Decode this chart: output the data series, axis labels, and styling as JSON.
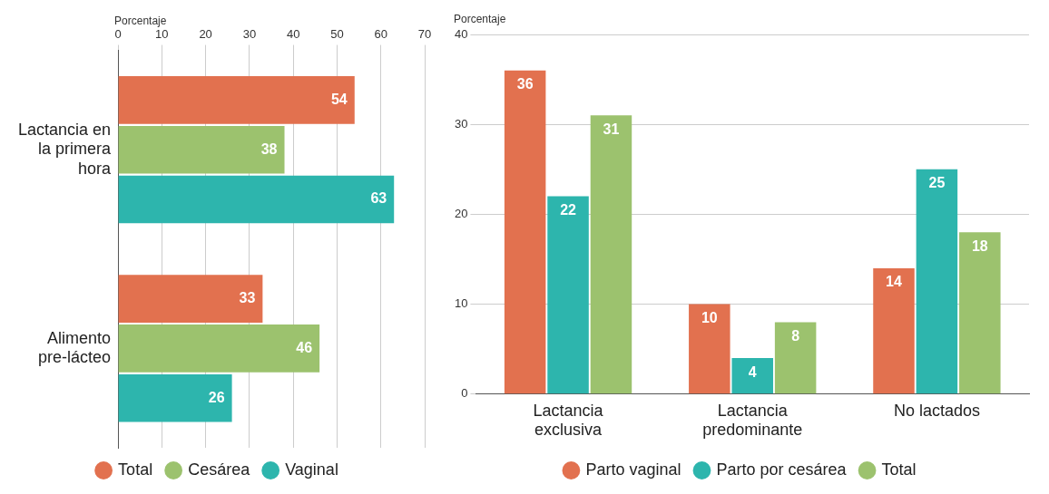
{
  "chart_data": [
    {
      "type": "bar",
      "orientation": "horizontal",
      "xlabel": "Porcentaje",
      "categories": [
        "Lactancia en la primera hora",
        "Alimento pre-lácteo"
      ],
      "series": [
        {
          "name": "Total",
          "color": "#e2714f",
          "values": [
            54,
            33
          ]
        },
        {
          "name": "Cesárea",
          "color": "#9cc26e",
          "values": [
            38,
            46
          ]
        },
        {
          "name": "Vaginal",
          "color": "#2db5ad",
          "values": [
            63,
            26
          ]
        }
      ],
      "xlim": [
        0,
        70
      ],
      "xticks": [
        0,
        10,
        20,
        30,
        40,
        50,
        60,
        70
      ],
      "grid": "x",
      "legend": "bottom",
      "data_labels": true
    },
    {
      "type": "bar",
      "ylabel": "Porcentaje",
      "categories": [
        "Lactancia exclusiva",
        "Lactancia predominante",
        "No lactados"
      ],
      "series": [
        {
          "name": "Parto vaginal",
          "color": "#e2714f",
          "values": [
            36,
            10,
            14
          ]
        },
        {
          "name": "Parto por cesárea",
          "color": "#2db5ad",
          "values": [
            22,
            4,
            25
          ]
        },
        {
          "name": "Total",
          "color": "#9cc26e",
          "values": [
            31,
            8,
            18
          ]
        }
      ],
      "ylim": [
        0,
        40
      ],
      "yticks": [
        0,
        10,
        20,
        30,
        40
      ],
      "grid": "y",
      "legend": "bottom",
      "data_labels": true
    }
  ]
}
